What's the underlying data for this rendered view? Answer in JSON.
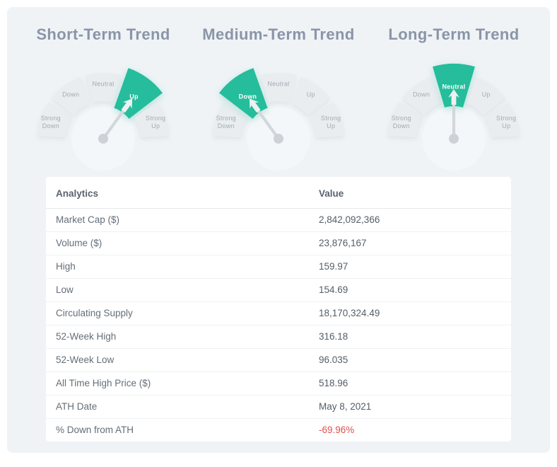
{
  "colors": {
    "panel_bg": "#eff3f6",
    "card_bg": "#ffffff",
    "highlight": "#25bd9b",
    "segment": "#e9edf0",
    "segment_label": "#a2aab3",
    "selected_label": "#ffffff",
    "needle": "#d2d7db",
    "pivot": "#ccd2d7",
    "arrow": "#eef1f2",
    "hub": "#f4f7f9",
    "title": "#8b95a8",
    "negative": "#e0504b"
  },
  "gauges": [
    {
      "title": "Short-Term Trend",
      "labels": [
        "Strong Down",
        "Down",
        "Neutral",
        "Up",
        "Strong Up"
      ],
      "selected": "Up"
    },
    {
      "title": "Medium-Term Trend",
      "labels": [
        "Strong Down",
        "Down",
        "Neutral",
        "Up",
        "Strong Up"
      ],
      "selected": "Down"
    },
    {
      "title": "Long-Term Trend",
      "labels": [
        "Strong Down",
        "Down",
        "Neutral",
        "Up",
        "Strong Up"
      ],
      "selected": "Neutral"
    }
  ],
  "table": {
    "headers": [
      "Analytics",
      "Value"
    ],
    "rows": [
      {
        "label": "Market Cap ($)",
        "value": "2,842,092,366",
        "negative": false
      },
      {
        "label": "Volume ($)",
        "value": "23,876,167",
        "negative": false
      },
      {
        "label": "High",
        "value": "159.97",
        "negative": false
      },
      {
        "label": "Low",
        "value": "154.69",
        "negative": false
      },
      {
        "label": "Circulating Supply",
        "value": "18,170,324.49",
        "negative": false
      },
      {
        "label": "52-Week High",
        "value": "316.18",
        "negative": false
      },
      {
        "label": "52-Week Low",
        "value": "96.035",
        "negative": false
      },
      {
        "label": "All Time High Price ($)",
        "value": "518.96",
        "negative": false
      },
      {
        "label": "ATH Date",
        "value": "May 8, 2021",
        "negative": false
      },
      {
        "label": "% Down from ATH",
        "value": "-69.96%",
        "negative": true
      }
    ]
  },
  "chart_data": [
    {
      "type": "gauge",
      "title": "Short-Term Trend",
      "categories": [
        "Strong Down",
        "Down",
        "Neutral",
        "Up",
        "Strong Up"
      ],
      "value": "Up"
    },
    {
      "type": "gauge",
      "title": "Medium-Term Trend",
      "categories": [
        "Strong Down",
        "Down",
        "Neutral",
        "Up",
        "Strong Up"
      ],
      "value": "Down"
    },
    {
      "type": "gauge",
      "title": "Long-Term Trend",
      "categories": [
        "Strong Down",
        "Down",
        "Neutral",
        "Up",
        "Strong Up"
      ],
      "value": "Neutral"
    },
    {
      "type": "table",
      "columns": [
        "Analytics",
        "Value"
      ],
      "rows": [
        [
          "Market Cap ($)",
          "2,842,092,366"
        ],
        [
          "Volume ($)",
          "23,876,167"
        ],
        [
          "High",
          "159.97"
        ],
        [
          "Low",
          "154.69"
        ],
        [
          "Circulating Supply",
          "18,170,324.49"
        ],
        [
          "52-Week High",
          "316.18"
        ],
        [
          "52-Week Low",
          "96.035"
        ],
        [
          "All Time High Price ($)",
          "518.96"
        ],
        [
          "ATH Date",
          "May 8, 2021"
        ],
        [
          "% Down from ATH",
          "-69.96%"
        ]
      ]
    }
  ]
}
